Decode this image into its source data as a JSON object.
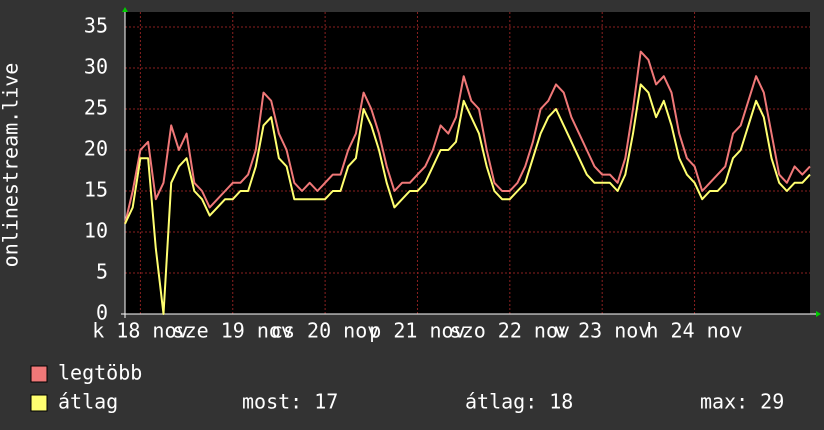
{
  "chart_data": {
    "type": "line",
    "ylabel": "onlinestream.live",
    "categories": [
      null,
      null,
      "k 18 nov",
      null,
      null,
      null,
      null,
      null,
      null,
      null,
      null,
      null,
      null,
      null,
      "sze 19 nov",
      null,
      null,
      null,
      null,
      null,
      null,
      null,
      null,
      null,
      null,
      null,
      "cs 20 nov",
      null,
      null,
      null,
      null,
      null,
      null,
      null,
      null,
      null,
      null,
      null,
      "p 21 nov",
      null,
      null,
      null,
      null,
      null,
      null,
      null,
      null,
      null,
      null,
      null,
      "szo 22 nov",
      null,
      null,
      null,
      null,
      null,
      null,
      null,
      null,
      null,
      null,
      null,
      "v 23 nov",
      null,
      null,
      null,
      null,
      null,
      null,
      null,
      null,
      null,
      null,
      null,
      "h 24 nov",
      null,
      null,
      null,
      null,
      null,
      null,
      null,
      null,
      null,
      null,
      null,
      null,
      null,
      null,
      null
    ],
    "series": [
      {
        "name": "legtöbb",
        "color": "#f07878",
        "values": [
          11,
          15,
          20,
          21,
          14,
          16,
          23,
          20,
          22,
          16,
          15,
          13,
          14,
          15,
          16,
          16,
          17,
          20,
          27,
          26,
          22,
          20,
          16,
          15,
          16,
          15,
          16,
          17,
          17,
          20,
          22,
          27,
          25,
          22,
          18,
          15,
          16,
          16,
          17,
          18,
          20,
          23,
          22,
          24,
          29,
          26,
          25,
          20,
          16,
          15,
          15,
          16,
          18,
          21,
          25,
          26,
          28,
          27,
          24,
          22,
          20,
          18,
          17,
          17,
          16,
          19,
          25,
          32,
          31,
          28,
          29,
          27,
          22,
          19,
          18,
          15,
          16,
          17,
          18,
          22,
          23,
          26,
          29,
          27,
          22,
          17,
          16,
          18,
          17,
          18
        ]
      },
      {
        "name": "átlag",
        "color": "#ffff70",
        "values": [
          11,
          13,
          19,
          19,
          8,
          0,
          16,
          18,
          19,
          15,
          14,
          12,
          13,
          14,
          14,
          15,
          15,
          18,
          23,
          24,
          19,
          18,
          14,
          14,
          14,
          14,
          14,
          15,
          15,
          18,
          19,
          25,
          23,
          20,
          16,
          13,
          14,
          15,
          15,
          16,
          18,
          20,
          20,
          21,
          26,
          24,
          22,
          18,
          15,
          14,
          14,
          15,
          16,
          19,
          22,
          24,
          25,
          23,
          21,
          19,
          17,
          16,
          16,
          16,
          15,
          17,
          22,
          28,
          27,
          24,
          26,
          23,
          19,
          17,
          16,
          14,
          15,
          15,
          16,
          19,
          20,
          23,
          26,
          24,
          19,
          16,
          15,
          16,
          16,
          17
        ]
      }
    ],
    "ylim": [
      0,
      35
    ],
    "yticks": [
      0,
      5,
      10,
      15,
      20,
      25,
      30,
      35
    ],
    "grid": true,
    "stats": [
      {
        "label": "most:",
        "value": 17
      },
      {
        "label": "átlag:",
        "value": 18
      },
      {
        "label": "max:",
        "value": 29
      }
    ]
  }
}
